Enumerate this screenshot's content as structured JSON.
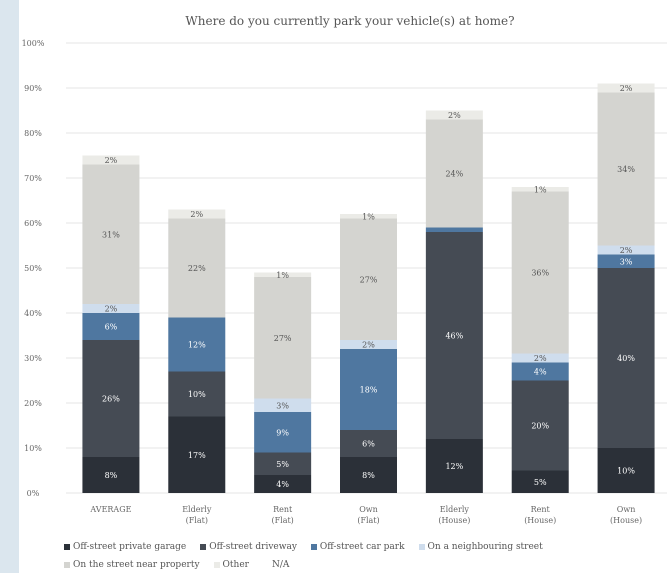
{
  "chart_data": {
    "type": "bar",
    "title": "Where do you currently park your vehicle(s) at home?",
    "categories": [
      "AVERAGE",
      "Elderly (Flat)",
      "Rent (Flat)",
      "Own (Flat)",
      "Elderly (House)",
      "Rent (House)",
      "Own (House)"
    ],
    "category_lines": [
      [
        "AVERAGE"
      ],
      [
        "Elderly",
        "(Flat)"
      ],
      [
        "Rent",
        "(Flat)"
      ],
      [
        "Own",
        "(Flat)"
      ],
      [
        "Elderly",
        "(House)"
      ],
      [
        "Rent",
        "(House)"
      ],
      [
        "Own",
        "(House)"
      ]
    ],
    "yticks": [
      "0%",
      "10%",
      "20%",
      "30%",
      "40%",
      "50%",
      "60%",
      "70%",
      "80%",
      "90%",
      "100%"
    ],
    "ylim": [
      0,
      100
    ],
    "series": [
      {
        "name": "Off-street private garage",
        "color": "#2b3038",
        "values": [
          8,
          17,
          4,
          8,
          12,
          5,
          10
        ],
        "labels": [
          "8%",
          "17%",
          "4%",
          "8%",
          "12%",
          "5%",
          "10%"
        ]
      },
      {
        "name": "Off-street driveway",
        "color": "#454b54",
        "values": [
          26,
          10,
          5,
          6,
          46,
          20,
          40
        ],
        "labels": [
          "26%",
          "10%",
          "5%",
          "6%",
          "46%",
          "20%",
          "40%"
        ]
      },
      {
        "name": "Off-street car park",
        "color": "#4f77a0",
        "values": [
          6,
          12,
          9,
          18,
          1,
          4,
          3
        ],
        "labels": [
          "6%",
          "12%",
          "9%",
          "18%",
          "",
          "4%",
          "3%"
        ]
      },
      {
        "name": "On a neighbouring street",
        "color": "#cfdded",
        "values": [
          2,
          0,
          3,
          2,
          0,
          2,
          2
        ],
        "labels": [
          "2%",
          "",
          "3%",
          "2%",
          "",
          "2%",
          "2%"
        ]
      },
      {
        "name": "On the street near property",
        "color": "#d4d4d0",
        "values": [
          31,
          22,
          27,
          27,
          24,
          36,
          34
        ],
        "labels": [
          "31%",
          "22%",
          "27%",
          "27%",
          "24%",
          "36%",
          "34%"
        ]
      },
      {
        "name": "Other",
        "color": "#ebebe7",
        "values": [
          2,
          2,
          1,
          1,
          2,
          1,
          2
        ],
        "labels": [
          "2%",
          "2%",
          "1%",
          "1%",
          "2%",
          "1%",
          "2%"
        ]
      },
      {
        "name": "N/A",
        "color": "#ffffff",
        "values": [
          0,
          0,
          0,
          0,
          0,
          0,
          0
        ],
        "labels": [
          "",
          "",
          "",
          "",
          "",
          "",
          ""
        ]
      }
    ],
    "grid": true,
    "legend_position": "bottom"
  }
}
